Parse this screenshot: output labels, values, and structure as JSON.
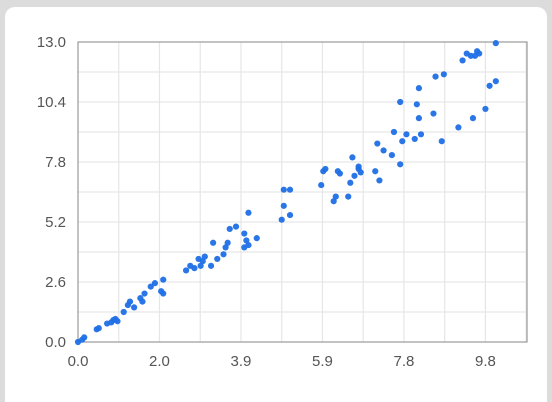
{
  "chart_data": {
    "type": "scatter",
    "title": "",
    "xlabel": "",
    "ylabel": "",
    "xlim": [
      0.0,
      10.8
    ],
    "ylim": [
      0.0,
      13.0
    ],
    "xticks": [
      "0.0",
      "2.0",
      "3.9",
      "5.9",
      "7.8",
      "9.8"
    ],
    "xtick_values": [
      0.0,
      1.96,
      3.92,
      5.88,
      7.84,
      9.8
    ],
    "yticks": [
      "0.0",
      "2.6",
      "5.2",
      "7.8",
      "10.4",
      "13.0"
    ],
    "ytick_values": [
      0.0,
      2.6,
      5.2,
      7.8,
      10.4,
      13.0
    ],
    "grid": true,
    "point_color": "#1f6fe6",
    "points": [
      [
        0.0,
        0.0
      ],
      [
        0.1,
        0.1
      ],
      [
        0.15,
        0.2
      ],
      [
        0.45,
        0.55
      ],
      [
        0.5,
        0.6
      ],
      [
        0.7,
        0.8
      ],
      [
        0.8,
        0.85
      ],
      [
        0.85,
        0.95
      ],
      [
        0.9,
        1.0
      ],
      [
        0.95,
        0.9
      ],
      [
        1.1,
        1.3
      ],
      [
        1.2,
        1.6
      ],
      [
        1.25,
        1.75
      ],
      [
        1.35,
        1.5
      ],
      [
        1.5,
        1.9
      ],
      [
        1.55,
        1.75
      ],
      [
        1.6,
        2.1
      ],
      [
        1.75,
        2.4
      ],
      [
        1.85,
        2.55
      ],
      [
        2.0,
        2.2
      ],
      [
        2.05,
        2.1
      ],
      [
        2.05,
        2.7
      ],
      [
        2.6,
        3.1
      ],
      [
        2.7,
        3.3
      ],
      [
        2.8,
        3.2
      ],
      [
        2.9,
        3.6
      ],
      [
        2.95,
        3.3
      ],
      [
        3.0,
        3.5
      ],
      [
        3.05,
        3.7
      ],
      [
        3.2,
        3.3
      ],
      [
        3.25,
        4.3
      ],
      [
        3.35,
        3.6
      ],
      [
        3.5,
        3.8
      ],
      [
        3.55,
        4.1
      ],
      [
        3.6,
        4.3
      ],
      [
        3.65,
        4.9
      ],
      [
        3.8,
        5.0
      ],
      [
        4.0,
        4.1
      ],
      [
        4.0,
        4.7
      ],
      [
        4.05,
        4.4
      ],
      [
        4.1,
        4.2
      ],
      [
        4.1,
        5.6
      ],
      [
        4.3,
        4.5
      ],
      [
        4.9,
        5.3
      ],
      [
        4.95,
        5.9
      ],
      [
        4.95,
        6.6
      ],
      [
        5.1,
        5.5
      ],
      [
        5.1,
        6.6
      ],
      [
        5.85,
        6.8
      ],
      [
        5.9,
        7.4
      ],
      [
        5.95,
        7.5
      ],
      [
        6.15,
        6.1
      ],
      [
        6.2,
        6.3
      ],
      [
        6.25,
        7.4
      ],
      [
        6.3,
        7.3
      ],
      [
        6.5,
        6.3
      ],
      [
        6.55,
        6.9
      ],
      [
        6.6,
        8.0
      ],
      [
        6.65,
        7.2
      ],
      [
        6.75,
        7.5
      ],
      [
        6.75,
        7.6
      ],
      [
        6.8,
        7.35
      ],
      [
        7.15,
        7.4
      ],
      [
        7.2,
        8.6
      ],
      [
        7.25,
        7.0
      ],
      [
        7.35,
        8.3
      ],
      [
        7.55,
        8.1
      ],
      [
        7.6,
        9.1
      ],
      [
        7.75,
        7.7
      ],
      [
        7.8,
        8.7
      ],
      [
        7.75,
        10.4
      ],
      [
        7.9,
        9.0
      ],
      [
        8.1,
        8.8
      ],
      [
        8.15,
        10.3
      ],
      [
        8.2,
        9.7
      ],
      [
        8.25,
        9.0
      ],
      [
        8.2,
        11.0
      ],
      [
        8.55,
        9.9
      ],
      [
        8.6,
        11.5
      ],
      [
        8.75,
        8.7
      ],
      [
        8.8,
        11.6
      ],
      [
        9.15,
        9.3
      ],
      [
        9.25,
        12.2
      ],
      [
        9.35,
        12.5
      ],
      [
        9.45,
        12.4
      ],
      [
        9.5,
        9.7
      ],
      [
        9.55,
        12.4
      ],
      [
        9.6,
        12.6
      ],
      [
        9.65,
        12.5
      ],
      [
        9.8,
        10.1
      ],
      [
        9.9,
        11.1
      ],
      [
        10.05,
        11.3
      ],
      [
        10.05,
        12.95
      ]
    ]
  }
}
